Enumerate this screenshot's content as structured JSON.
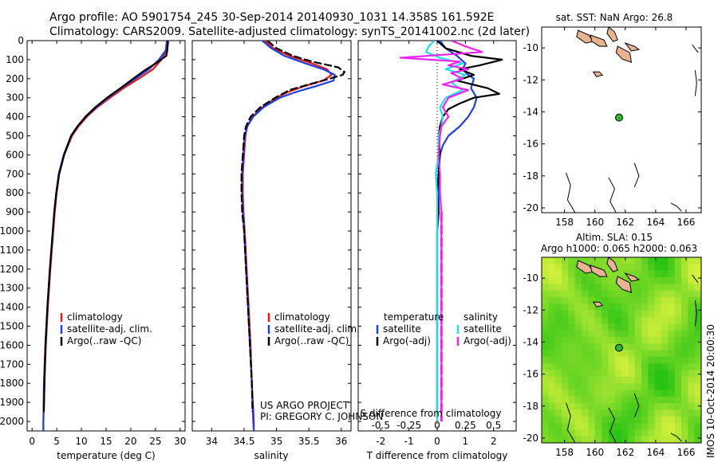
{
  "header": {
    "title_line1": "Argo profile: AO 5901754_245 30-Sep-2014 20140930_1031 14.358S 161.592E",
    "title_line2": "Climatology: CARS2009. Satellite-adjusted climatology: synTS_20141002.nc (2d later)"
  },
  "colors": {
    "climatology": "#e41a1c",
    "satellite": "#1f3fe0",
    "argo": "#000000",
    "sal_satellite": "#22ddee",
    "sal_argo": "#ee22ee",
    "land": "#e8b48f",
    "float_marker": "#2db52d",
    "sla_green": "#33cc22",
    "sla_yellow": "#ccee33"
  },
  "chart_data": [
    {
      "type": "line",
      "name_key": "temperature",
      "xlabel": "temperature (deg C)",
      "ylabel": "",
      "xlim": [
        -1,
        31
      ],
      "ylim": [
        2050,
        0
      ],
      "xticks": [
        0,
        5,
        10,
        15,
        20,
        25,
        30
      ],
      "yticks": [
        0,
        100,
        200,
        300,
        400,
        500,
        600,
        700,
        800,
        900,
        1000,
        1100,
        1200,
        1300,
        1400,
        1500,
        1600,
        1700,
        1800,
        1900,
        2000
      ],
      "legend": [
        "climatology",
        "satellite-adj. clim.",
        "Argo(..raw -QC)"
      ],
      "legend_position": "lower-left",
      "series": [
        {
          "name": "climatology",
          "color_key": "climatology",
          "depth": [
            0,
            50,
            100,
            150,
            200,
            250,
            300,
            350,
            400,
            450,
            500,
            600,
            700,
            800,
            900,
            1000,
            1200,
            1400,
            1600,
            1800,
            2000,
            2050
          ],
          "values": [
            27.6,
            27.4,
            26.2,
            24.5,
            21.6,
            18.5,
            15.8,
            13.2,
            11.1,
            9.4,
            8.1,
            6.5,
            5.5,
            5.0,
            4.6,
            4.3,
            3.7,
            3.2,
            2.8,
            2.5,
            2.3,
            2.3
          ]
        },
        {
          "name": "satellite-adj. clim.",
          "color_key": "satellite",
          "depth": [
            0,
            50,
            100,
            150,
            200,
            250,
            300,
            350,
            400,
            450,
            500,
            600,
            700,
            800,
            900,
            1000,
            1200,
            1400,
            1600,
            1800,
            2000,
            2050
          ],
          "values": [
            27.3,
            27.1,
            25.7,
            23.7,
            20.9,
            18.0,
            15.4,
            13.0,
            10.9,
            9.2,
            7.9,
            6.4,
            5.4,
            4.9,
            4.5,
            4.2,
            3.6,
            3.1,
            2.7,
            2.4,
            2.3,
            2.3
          ]
        },
        {
          "name": "Argo(..raw -QC)",
          "color_key": "argo",
          "depth": [
            0,
            50,
            80,
            120,
            160,
            200,
            250,
            300,
            350,
            400,
            450,
            500,
            600,
            700,
            800,
            900,
            1000,
            1200,
            1400,
            1600,
            1800,
            1950
          ],
          "values": [
            27.5,
            27.4,
            27.2,
            25.0,
            22.6,
            20.5,
            17.9,
            15.2,
            12.8,
            10.8,
            9.2,
            7.9,
            6.5,
            5.5,
            4.9,
            4.5,
            4.2,
            3.6,
            3.1,
            2.7,
            2.5,
            2.4
          ]
        }
      ]
    },
    {
      "type": "line",
      "name_key": "salinity",
      "xlabel": "salinity",
      "xlim": [
        33.7,
        36.15
      ],
      "ylim": [
        2050,
        0
      ],
      "xticks": [
        34,
        34.5,
        35,
        35.5,
        36
      ],
      "xticklabels": [
        "34",
        "34.5",
        "35",
        "35.5",
        "36"
      ],
      "legend": [
        "climatology",
        "satellite-adj. clim.",
        "Argo(..raw -QC)"
      ],
      "legend_position": "lower-right",
      "annotation_line1": "US ARGO PROJECT",
      "annotation_line2": "PI: GREGORY C. JOHNSON",
      "series": [
        {
          "name": "climatology",
          "color_key": "climatology",
          "depth": [
            0,
            40,
            80,
            120,
            150,
            180,
            210,
            240,
            270,
            300,
            350,
            400,
            450,
            500,
            600,
            700,
            800,
            900,
            1000,
            1200,
            1400,
            1600,
            1800,
            2000,
            2050
          ],
          "values": [
            34.82,
            34.95,
            35.2,
            35.55,
            35.78,
            35.85,
            35.72,
            35.42,
            35.18,
            35.0,
            34.78,
            34.63,
            34.55,
            34.52,
            34.5,
            34.48,
            34.48,
            34.49,
            34.51,
            34.54,
            34.57,
            34.6,
            34.62,
            34.65,
            34.65
          ]
        },
        {
          "name": "satellite-adj. clim.",
          "color_key": "satellite",
          "depth": [
            0,
            40,
            80,
            120,
            150,
            180,
            210,
            240,
            270,
            300,
            350,
            400,
            450,
            500,
            600,
            700,
            800,
            900,
            1000,
            1200,
            1400,
            1600,
            1800,
            2000,
            2050
          ],
          "values": [
            34.78,
            34.92,
            35.12,
            35.45,
            35.72,
            35.9,
            35.88,
            35.6,
            35.3,
            35.05,
            34.8,
            34.64,
            34.55,
            34.51,
            34.49,
            34.47,
            34.47,
            34.48,
            34.5,
            34.53,
            34.56,
            34.59,
            34.62,
            34.64,
            34.65
          ]
        },
        {
          "name": "Argo(..raw -QC)",
          "color_key": "argo",
          "depth": [
            0,
            40,
            80,
            110,
            140,
            165,
            180,
            200,
            230,
            260,
            300,
            350,
            400,
            450,
            500,
            600,
            700,
            800,
            900,
            1000,
            1200,
            1400,
            1600,
            1800,
            1950
          ],
          "values": [
            34.86,
            35.0,
            35.25,
            35.55,
            35.95,
            36.05,
            36.02,
            35.82,
            35.5,
            35.2,
            34.98,
            34.75,
            34.6,
            34.53,
            34.5,
            34.48,
            34.46,
            34.46,
            34.47,
            34.5,
            34.53,
            34.56,
            34.59,
            34.62,
            34.63
          ]
        }
      ]
    },
    {
      "type": "line",
      "name_key": "difference",
      "xlabel": "T difference from climatology",
      "top_axis_label": "S difference from climatology",
      "xlim": [
        -2.8,
        2.8
      ],
      "ylim": [
        2050,
        0
      ],
      "xticks": [
        -2,
        -1,
        0,
        1,
        2
      ],
      "top_ticklabels": [
        "-0.5",
        "-0.25",
        "0",
        "0.25",
        "0.5"
      ],
      "top_tick_values": [
        -2,
        -1,
        0,
        1,
        2
      ],
      "legend": [
        "temperature",
        "satellite",
        "Argo(-adj)",
        "salinity",
        "satellite",
        "Argo(-adj)"
      ],
      "legend_position": "lower",
      "series": [
        {
          "name": "temperature satellite",
          "color_key": "satellite",
          "depth": [
            0,
            40,
            80,
            120,
            150,
            180,
            200,
            250,
            300,
            350,
            400,
            450,
            500,
            550,
            600,
            650,
            700,
            800,
            900,
            1000,
            1200,
            1400,
            1600,
            1800,
            2000
          ],
          "values": [
            0.1,
            0.3,
            0.7,
            1.0,
            0.9,
            1.1,
            1.3,
            1.2,
            1.4,
            1.3,
            1.1,
            0.8,
            0.4,
            0.2,
            0.1,
            0.05,
            0.05,
            0.05,
            0.05,
            0.0,
            0.0,
            0.0,
            0.0,
            0.0,
            0.0
          ]
        },
        {
          "name": "temperature Argo(-adj)",
          "color_key": "argo",
          "depth": [
            0,
            40,
            80,
            100,
            130,
            150,
            180,
            210,
            250,
            280,
            300,
            330,
            360,
            400,
            450,
            500,
            600,
            700,
            800,
            900,
            1000,
            1200,
            1400,
            1600,
            1800,
            1950
          ],
          "values": [
            0.0,
            0.3,
            1.2,
            2.3,
            1.5,
            0.8,
            1.3,
            0.7,
            1.8,
            2.2,
            1.3,
            0.8,
            0.4,
            0.2,
            0.1,
            0.05,
            0.1,
            0.05,
            0.0,
            0.05,
            0.0,
            0.0,
            0.0,
            0.0,
            0.0,
            0.0
          ]
        },
        {
          "name": "salinity satellite",
          "color_key": "sal_satellite",
          "depth": [
            0,
            30,
            60,
            90,
            120,
            150,
            180,
            220,
            260,
            300,
            350,
            400,
            450,
            500,
            600,
            700,
            800,
            900,
            1000,
            1200,
            1400,
            1600,
            1800,
            2000
          ],
          "values": [
            -0.1,
            -0.3,
            -0.4,
            0.1,
            0.9,
            0.3,
            1.0,
            0.5,
            0.9,
            0.3,
            0.1,
            0.2,
            0.15,
            0.05,
            0.05,
            -0.05,
            0.0,
            0.0,
            0.0,
            0.0,
            0.0,
            0.0,
            0.0,
            0.0
          ]
        },
        {
          "name": "salinity Argo(-adj)",
          "color_key": "sal_argo",
          "depth": [
            0,
            30,
            60,
            90,
            110,
            130,
            150,
            170,
            200,
            230,
            260,
            300,
            350,
            400,
            450,
            500,
            600,
            700,
            800,
            900,
            1000,
            1200,
            1400,
            1600,
            1800,
            2000
          ],
          "values": [
            0.5,
            1.0,
            1.6,
            -1.3,
            0.8,
            0.4,
            1.1,
            0.5,
            0.9,
            0.2,
            1.1,
            0.4,
            0.2,
            0.4,
            0.15,
            0.1,
            0.05,
            0.1,
            0.1,
            0.15,
            0.15,
            0.15,
            0.15,
            0.15,
            0.15,
            0.15
          ]
        }
      ]
    },
    {
      "type": "map",
      "name_key": "sst_map",
      "title": "sat. SST: NaN Argo: 26.8",
      "xlim": [
        156.5,
        167
      ],
      "ylim": [
        -20.3,
        -8.7
      ],
      "xticks": [
        158,
        160,
        162,
        164,
        166
      ],
      "yticks": [
        -10,
        -12,
        -14,
        -16,
        -18,
        -20
      ],
      "float_lon": 161.592,
      "float_lat": -14.358
    },
    {
      "type": "heatmap",
      "name_key": "sla_map",
      "title_line1": "Altim. SLA: 0.15",
      "title_line2": "Argo h1000: 0.065 h2000: 0.063",
      "xlim": [
        156.5,
        167
      ],
      "ylim": [
        -20.3,
        -8.7
      ],
      "xticks": [
        158,
        160,
        162,
        164,
        166
      ],
      "yticks": [
        -10,
        -12,
        -14,
        -16,
        -18,
        -20
      ],
      "float_lon": 161.592,
      "float_lat": -14.358
    }
  ],
  "footer": {
    "stamp": "IMOS 10-Oct-2014 20:00:30"
  }
}
